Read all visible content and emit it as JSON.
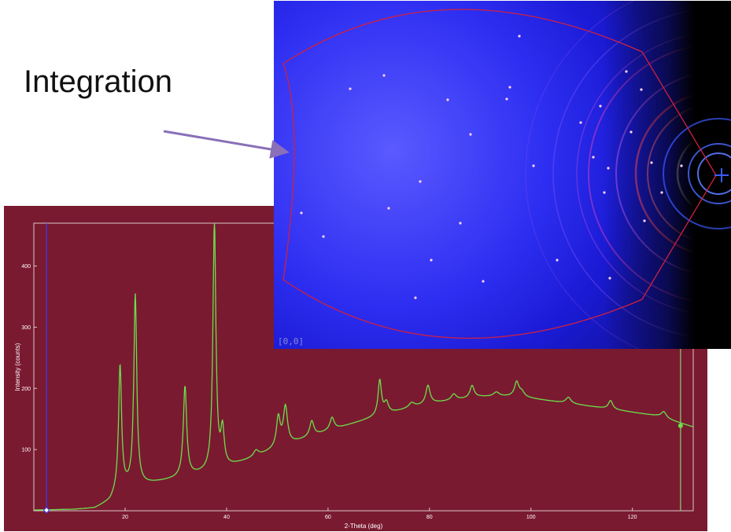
{
  "slide_title": "Integration",
  "detector": {
    "origin_label": "[0,0]"
  },
  "colors": {
    "panel_bg": "#7a1a30",
    "trace": "#6be04c",
    "plot_border": "#d8c8c8",
    "cursor_line": "#3a3aff",
    "right_cursor": "#8bd06b",
    "arrow": "#8a70b8",
    "mask": "#d02040"
  },
  "chart_data": {
    "type": "line",
    "title": "",
    "xlabel": "2-Theta (deg)",
    "ylabel": "Intensity (counts)",
    "xlim": [
      2,
      132
    ],
    "ylim": [
      0,
      470
    ],
    "x_ticks": [
      20,
      40,
      60,
      80,
      100,
      120
    ],
    "y_ticks": [
      100,
      200,
      300,
      400
    ],
    "grid": false,
    "background": {
      "points": [
        [
          2,
          1
        ],
        [
          10,
          2
        ],
        [
          14,
          4
        ],
        [
          17,
          15
        ],
        [
          19,
          36
        ],
        [
          22,
          40
        ],
        [
          30,
          52
        ],
        [
          38,
          65
        ],
        [
          45,
          85
        ],
        [
          50,
          102
        ],
        [
          60,
          130
        ],
        [
          70,
          155
        ],
        [
          80,
          175
        ],
        [
          90,
          186
        ],
        [
          97,
          187
        ],
        [
          105,
          178
        ],
        [
          115,
          167
        ],
        [
          125,
          155
        ],
        [
          132,
          137
        ]
      ]
    },
    "peaks": [
      {
        "x": 19.0,
        "height": 200,
        "width": 0.35
      },
      {
        "x": 22.0,
        "height": 312,
        "width": 0.35
      },
      {
        "x": 31.8,
        "height": 147,
        "width": 0.4
      },
      {
        "x": 37.6,
        "height": 408,
        "width": 0.35
      },
      {
        "x": 39.2,
        "height": 60,
        "width": 0.4
      },
      {
        "x": 45.8,
        "height": 10,
        "width": 0.6
      },
      {
        "x": 50.2,
        "height": 48,
        "width": 0.45
      },
      {
        "x": 51.6,
        "height": 62,
        "width": 0.5
      },
      {
        "x": 56.8,
        "height": 25,
        "width": 0.5
      },
      {
        "x": 60.8,
        "height": 20,
        "width": 0.5
      },
      {
        "x": 70.2,
        "height": 57,
        "width": 0.4
      },
      {
        "x": 71.5,
        "height": 18,
        "width": 0.5
      },
      {
        "x": 76.5,
        "height": 8,
        "width": 0.7
      },
      {
        "x": 79.7,
        "height": 30,
        "width": 0.5
      },
      {
        "x": 84.8,
        "height": 10,
        "width": 0.6
      },
      {
        "x": 88.4,
        "height": 20,
        "width": 0.5
      },
      {
        "x": 93.2,
        "height": 7,
        "width": 0.7
      },
      {
        "x": 97.2,
        "height": 23,
        "width": 0.5
      },
      {
        "x": 98.2,
        "height": 8,
        "width": 0.6
      },
      {
        "x": 107.4,
        "height": 10,
        "width": 0.6
      },
      {
        "x": 115.7,
        "height": 14,
        "width": 0.5
      },
      {
        "x": 126.2,
        "height": 10,
        "width": 0.6
      }
    ],
    "cursors": [
      4.5,
      129.5
    ],
    "marker_point": [
      129.5,
      139
    ]
  }
}
